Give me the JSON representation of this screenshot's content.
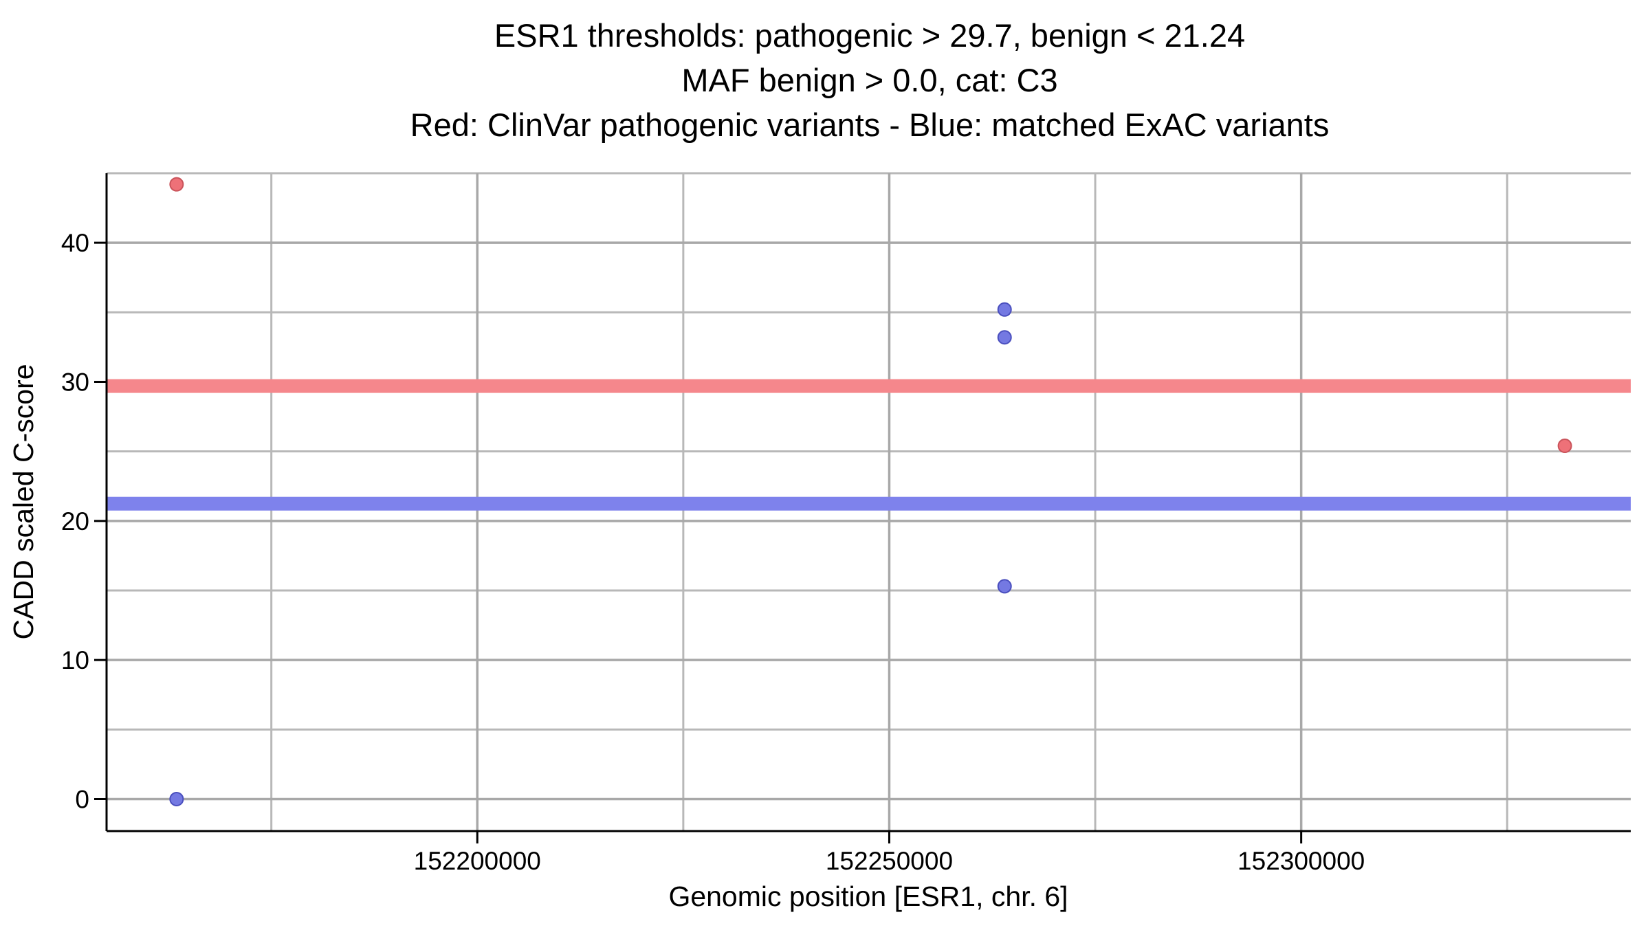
{
  "chart_data": {
    "type": "scatter",
    "title_lines": [
      "ESR1 thresholds: pathogenic > 29.7, benign < 21.24",
      "MAF benign > 0.0, cat: C3",
      "Red: ClinVar pathogenic variants - Blue: matched ExAC variants"
    ],
    "x_axis": {
      "label": "Genomic position [ESR1, chr. 6]",
      "lim": [
        152155000,
        152340000
      ],
      "major_ticks": [
        152200000,
        152250000,
        152300000
      ],
      "tick_labels": [
        "152200000",
        "152250000",
        "152300000"
      ],
      "minor_ticks": [
        152175000,
        152225000,
        152275000,
        152325000
      ]
    },
    "y_axis": {
      "label": "CADD scaled C-score",
      "lim": [
        -2.3,
        45.0
      ],
      "major_ticks": [
        0,
        10,
        20,
        30,
        40
      ],
      "tick_labels": [
        "0",
        "10",
        "20",
        "30",
        "40"
      ],
      "minor_ticks": [
        5,
        15,
        25,
        35,
        45
      ]
    },
    "thresholds": [
      {
        "name": "pathogenic",
        "comparator": ">",
        "value": 29.7,
        "band_color": "#F5878C"
      },
      {
        "name": "benign",
        "comparator": "<",
        "value": 21.24,
        "band_color": "#7E82EC"
      }
    ],
    "series": [
      {
        "name": "ClinVar pathogenic variants",
        "color_fill": "#EE7178",
        "color_stroke": "#C9535A",
        "points": [
          {
            "x": 152163500,
            "y": 44.2
          },
          {
            "x": 152332000,
            "y": 25.4
          }
        ]
      },
      {
        "name": "matched ExAC variants",
        "color_fill": "#7479E2",
        "color_stroke": "#4A4FBE",
        "points": [
          {
            "x": 152163500,
            "y": 0.0
          },
          {
            "x": 152264000,
            "y": 35.2
          },
          {
            "x": 152264000,
            "y": 33.2
          },
          {
            "x": 152264000,
            "y": 15.3
          }
        ]
      }
    ],
    "grid": {
      "on": true,
      "color_major": "#A8A8A8",
      "color_minor": "#B8B8B8"
    },
    "axis_color": "#000000",
    "legend": "none"
  }
}
